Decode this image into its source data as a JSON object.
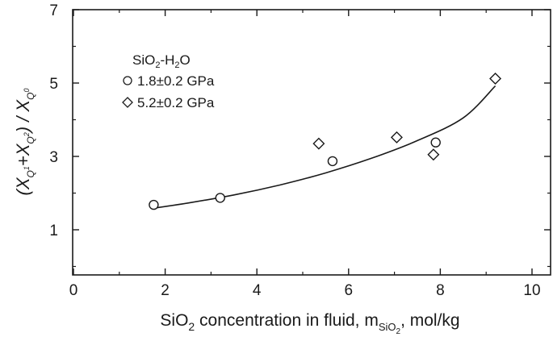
{
  "chart_data": {
    "type": "scatter",
    "xlim": [
      0,
      10
    ],
    "ylim": [
      0,
      7
    ],
    "x_ticks": [
      0,
      2,
      4,
      6,
      8,
      10
    ],
    "y_ticks": [
      1,
      3,
      5,
      7
    ],
    "x_minor_ticks": [
      1,
      3,
      5,
      7,
      9
    ],
    "y_minor_ticks": [
      0,
      2,
      4,
      6
    ],
    "xlabel": {
      "prefix": "SiO",
      "sub1": "2",
      "middle": " concentration in fluid, m",
      "sub2": "SiO",
      "sub3": "2",
      "suffix": ", mol/kg"
    },
    "ylabel": {
      "open": "(X",
      "sub1": "Q",
      "sup1": "1",
      "plus": "+X",
      "sub2": "Q",
      "sup2": "2",
      "close": ") / X",
      "sub3": "Q",
      "sup3": "0"
    },
    "legend": {
      "title_prefix": "SiO",
      "title_sub": "2",
      "title_suffix": "-H",
      "title_sub2": "2",
      "title_suffix2": "O",
      "position": "upper-left"
    },
    "series": [
      {
        "name": "1.8±0.2 GPa",
        "marker": "circle",
        "points": [
          [
            1.75,
            1.68
          ],
          [
            3.2,
            1.87
          ],
          [
            5.65,
            2.87
          ],
          [
            7.9,
            3.38
          ]
        ]
      },
      {
        "name": "5.2±0.2 GPa",
        "marker": "diamond",
        "points": [
          [
            5.35,
            3.35
          ],
          [
            7.05,
            3.52
          ],
          [
            7.85,
            3.05
          ],
          [
            9.2,
            5.12
          ]
        ]
      }
    ],
    "fit_curve": {
      "type": "line",
      "points": [
        [
          1.7,
          1.58
        ],
        [
          2.5,
          1.73
        ],
        [
          3.5,
          1.95
        ],
        [
          4.5,
          2.22
        ],
        [
          5.5,
          2.55
        ],
        [
          6.5,
          2.95
        ],
        [
          7.5,
          3.43
        ],
        [
          8.5,
          4.05
        ],
        [
          9.2,
          4.92
        ]
      ]
    },
    "grid": false
  }
}
